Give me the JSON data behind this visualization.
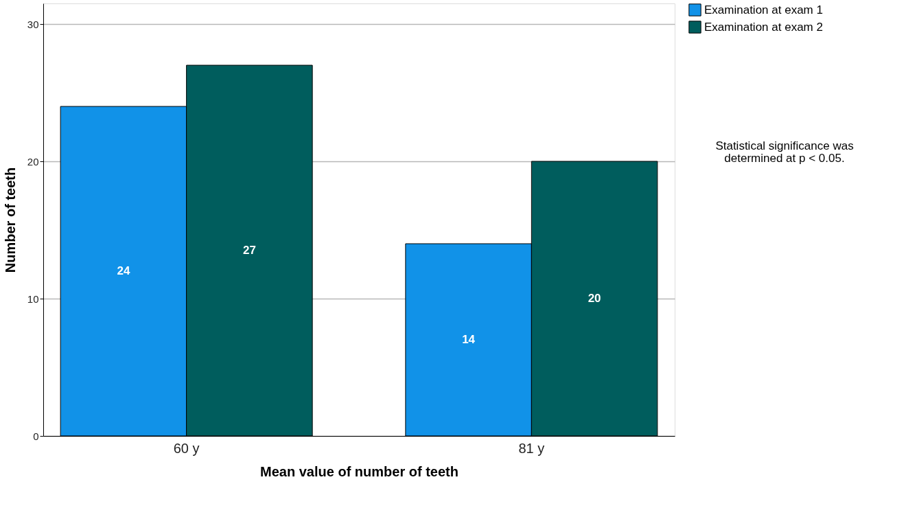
{
  "chart_data": {
    "type": "bar",
    "categories": [
      "60 y",
      "81 y"
    ],
    "xlabel": "Mean value of number of teeth",
    "ylabel": "Number of teeth",
    "series": [
      {
        "name": "Examination at exam 1",
        "color": "#1192e8",
        "values": [
          24,
          14
        ]
      },
      {
        "name": "Examination at exam 2",
        "color": "#005d5d",
        "values": [
          27,
          20
        ]
      }
    ],
    "ylim": [
      0,
      31.5
    ],
    "yticks": [
      0,
      10,
      20,
      30
    ],
    "grid": "y",
    "legend": "top right",
    "data_labels": true,
    "annotations": [
      "Statistical significance was determined at p < 0.05."
    ]
  }
}
